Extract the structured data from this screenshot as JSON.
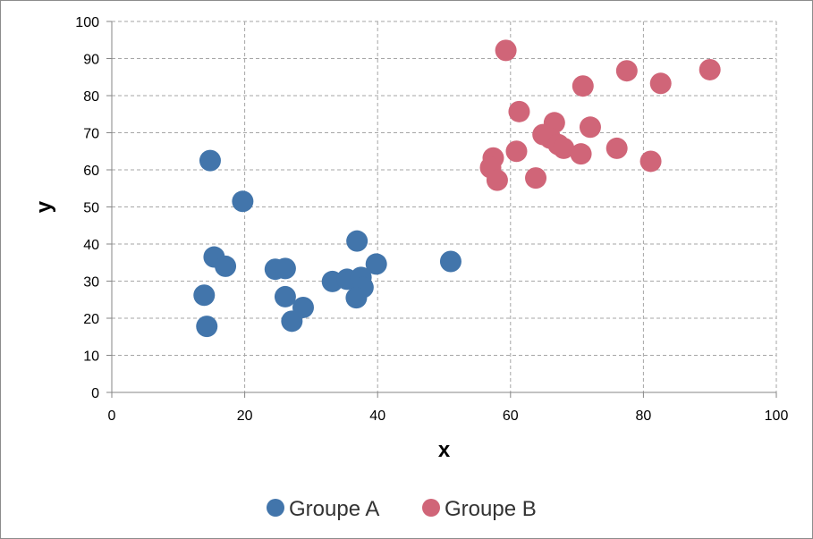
{
  "chart_data": {
    "type": "scatter",
    "title": "",
    "xlabel": "x",
    "ylabel": "y",
    "xlim": [
      0,
      100
    ],
    "ylim": [
      0,
      100
    ],
    "x_ticks": [
      0,
      20,
      40,
      60,
      80,
      100
    ],
    "y_ticks": [
      0,
      10,
      20,
      30,
      40,
      50,
      60,
      70,
      80,
      90,
      100
    ],
    "grid": true,
    "legend_position": "bottom",
    "series": [
      {
        "name": "Groupe A",
        "color": "#4275AB",
        "points": [
          [
            14.8,
            62.5
          ],
          [
            19.7,
            51.5
          ],
          [
            15.4,
            36.5
          ],
          [
            17.1,
            34.0
          ],
          [
            13.9,
            26.2
          ],
          [
            14.3,
            17.8
          ],
          [
            24.6,
            33.2
          ],
          [
            26.1,
            33.4
          ],
          [
            26.1,
            25.8
          ],
          [
            27.1,
            19.2
          ],
          [
            28.8,
            22.9
          ],
          [
            33.2,
            29.9
          ],
          [
            35.4,
            30.5
          ],
          [
            36.9,
            40.8
          ],
          [
            37.5,
            31.0
          ],
          [
            37.8,
            28.3
          ],
          [
            36.8,
            25.5
          ],
          [
            39.8,
            34.6
          ],
          [
            51.0,
            35.3
          ]
        ]
      },
      {
        "name": "Groupe B",
        "color": "#D06578",
        "points": [
          [
            59.3,
            92.2
          ],
          [
            77.5,
            86.7
          ],
          [
            90.0,
            87.0
          ],
          [
            70.9,
            82.6
          ],
          [
            82.6,
            83.3
          ],
          [
            61.3,
            75.7
          ],
          [
            66.6,
            72.7
          ],
          [
            72.0,
            71.5
          ],
          [
            64.9,
            69.5
          ],
          [
            66.0,
            68.5
          ],
          [
            67.2,
            66.8
          ],
          [
            68.0,
            65.8
          ],
          [
            76.0,
            65.8
          ],
          [
            60.9,
            65.0
          ],
          [
            70.6,
            64.3
          ],
          [
            57.4,
            63.2
          ],
          [
            57.0,
            60.6
          ],
          [
            81.1,
            62.3
          ],
          [
            58.0,
            57.2
          ],
          [
            63.8,
            57.8
          ]
        ]
      }
    ]
  }
}
